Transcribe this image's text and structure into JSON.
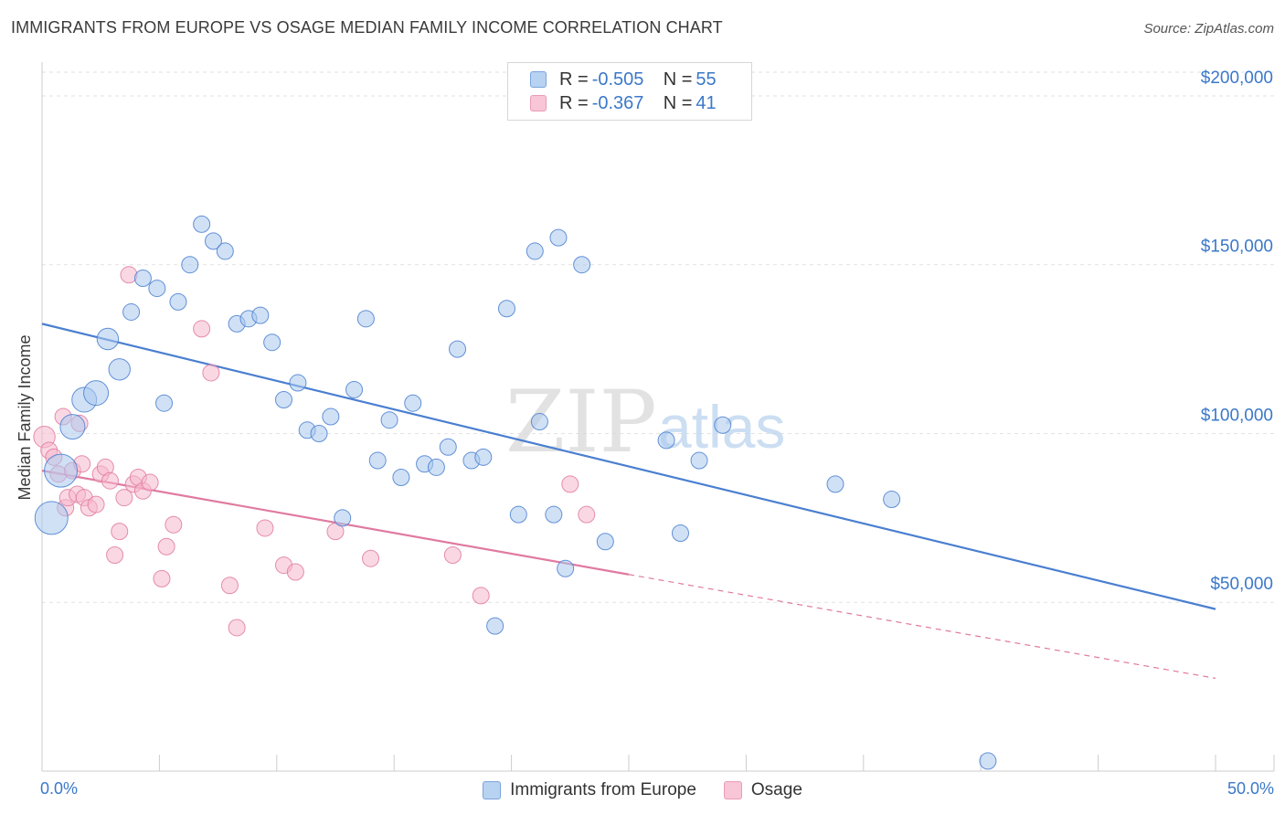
{
  "chart_data": {
    "type": "scatter",
    "title": "IMMIGRANTS FROM EUROPE VS OSAGE MEDIAN FAMILY INCOME CORRELATION CHART",
    "source": "Source: ZipAtlas.com",
    "watermark": {
      "zip": "ZIP",
      "atlas": "atlas"
    },
    "xlabel": "",
    "ylabel": "Median Family Income",
    "xlim": [
      0,
      50
    ],
    "ylim": [
      0,
      210000
    ],
    "x_tick_labels": {
      "min": "0.0%",
      "max": "50.0%"
    },
    "x_ticks_minor": [
      0,
      5,
      10,
      15,
      20,
      25,
      30,
      35,
      40,
      45,
      50
    ],
    "y_ticks": [
      {
        "value": 50000,
        "label": "$50,000"
      },
      {
        "value": 100000,
        "label": "$100,000"
      },
      {
        "value": 150000,
        "label": "$150,000"
      },
      {
        "value": 200000,
        "label": "$200,000"
      }
    ],
    "grid": true,
    "stats_legend": {
      "r_key": "R =",
      "n_key": "N =",
      "rows": [
        {
          "series": "Immigrants from Europe",
          "r": "-0.505",
          "n": "55"
        },
        {
          "series": "Osage",
          "r": "-0.367",
          "n": "41"
        }
      ]
    },
    "series": [
      {
        "name": "Immigrants from Europe",
        "color": "#4a7fd0",
        "fill": "#aac8ef",
        "swatch_fill": "#b8d2f2",
        "swatch_border": "#7aa3dc",
        "trend": {
          "x0": 0,
          "y0": 132500,
          "x1": 50,
          "y1": 48000,
          "solid_to": 50
        },
        "points": [
          [
            0.4,
            75000,
            2.0
          ],
          [
            0.8,
            89000,
            2.0
          ],
          [
            1.3,
            102000,
            1.5
          ],
          [
            1.8,
            110000,
            1.5
          ],
          [
            2.3,
            112000,
            1.5
          ],
          [
            2.8,
            128000,
            1.3
          ],
          [
            3.3,
            119000,
            1.3
          ],
          [
            3.8,
            136000,
            1.0
          ],
          [
            4.3,
            146000,
            1.0
          ],
          [
            4.9,
            143000,
            1.0
          ],
          [
            5.2,
            109000,
            1.0
          ],
          [
            5.8,
            139000,
            1.0
          ],
          [
            6.3,
            150000,
            1.0
          ],
          [
            6.8,
            162000,
            1.0
          ],
          [
            7.3,
            157000,
            1.0
          ],
          [
            7.8,
            154000,
            1.0
          ],
          [
            8.3,
            132500,
            1.0
          ],
          [
            8.8,
            134000,
            1.0
          ],
          [
            9.3,
            135000,
            1.0
          ],
          [
            9.8,
            127000,
            1.0
          ],
          [
            10.3,
            110000,
            1.0
          ],
          [
            10.9,
            115000,
            1.0
          ],
          [
            11.3,
            101000,
            1.0
          ],
          [
            11.8,
            100000,
            1.0
          ],
          [
            12.3,
            105000,
            1.0
          ],
          [
            12.8,
            75000,
            1.0
          ],
          [
            13.3,
            113000,
            1.0
          ],
          [
            13.8,
            134000,
            1.0
          ],
          [
            14.3,
            92000,
            1.0
          ],
          [
            14.8,
            104000,
            1.0
          ],
          [
            15.3,
            87000,
            1.0
          ],
          [
            15.8,
            109000,
            1.0
          ],
          [
            16.3,
            91000,
            1.0
          ],
          [
            16.8,
            90000,
            1.0
          ],
          [
            17.3,
            96000,
            1.0
          ],
          [
            17.7,
            125000,
            1.0
          ],
          [
            18.3,
            92000,
            1.0
          ],
          [
            18.8,
            93000,
            1.0
          ],
          [
            19.3,
            43000,
            1.0
          ],
          [
            19.8,
            137000,
            1.0
          ],
          [
            20.3,
            76000,
            1.0
          ],
          [
            21.0,
            154000,
            1.0
          ],
          [
            21.2,
            103500,
            1.0
          ],
          [
            21.8,
            76000,
            1.0
          ],
          [
            22.0,
            158000,
            1.0
          ],
          [
            22.3,
            60000,
            1.0
          ],
          [
            23.0,
            150000,
            1.0
          ],
          [
            24.0,
            68000,
            1.0
          ],
          [
            26.6,
            98000,
            1.0
          ],
          [
            27.2,
            70500,
            1.0
          ],
          [
            28.0,
            92000,
            1.0
          ],
          [
            29.0,
            102500,
            1.0
          ],
          [
            33.8,
            85000,
            1.0
          ],
          [
            36.2,
            80500,
            1.0
          ],
          [
            40.3,
            3000,
            1.0
          ]
        ]
      },
      {
        "name": "Osage",
        "color": "#e07aa0",
        "fill": "#f5b8cc",
        "swatch_fill": "#f8c6d6",
        "swatch_border": "#eb9bb8",
        "trend": {
          "x0": 0,
          "y0": 89000,
          "x1": 50,
          "y1": 27500,
          "solid_to": 25
        },
        "points": [
          [
            0.1,
            99000,
            1.3
          ],
          [
            0.3,
            95000,
            1.0
          ],
          [
            0.5,
            93000,
            1.0
          ],
          [
            0.7,
            88000,
            1.0
          ],
          [
            0.9,
            105000,
            1.0
          ],
          [
            1.0,
            78000,
            1.0
          ],
          [
            1.1,
            81000,
            1.0
          ],
          [
            1.3,
            89000,
            1.0
          ],
          [
            1.5,
            82000,
            1.0
          ],
          [
            1.6,
            103000,
            1.0
          ],
          [
            1.7,
            91000,
            1.0
          ],
          [
            1.8,
            81000,
            1.0
          ],
          [
            2.0,
            78000,
            1.0
          ],
          [
            2.3,
            79000,
            1.0
          ],
          [
            2.5,
            88000,
            1.0
          ],
          [
            2.7,
            90000,
            1.0
          ],
          [
            2.9,
            86000,
            1.0
          ],
          [
            3.1,
            64000,
            1.0
          ],
          [
            3.3,
            71000,
            1.0
          ],
          [
            3.5,
            81000,
            1.0
          ],
          [
            3.7,
            147000,
            1.0
          ],
          [
            3.9,
            85000,
            1.0
          ],
          [
            4.1,
            87000,
            1.0
          ],
          [
            4.3,
            83000,
            1.0
          ],
          [
            4.6,
            85500,
            1.0
          ],
          [
            5.1,
            57000,
            1.0
          ],
          [
            5.3,
            66500,
            1.0
          ],
          [
            5.6,
            73000,
            1.0
          ],
          [
            6.8,
            131000,
            1.0
          ],
          [
            7.2,
            118000,
            1.0
          ],
          [
            8.0,
            55000,
            1.0
          ],
          [
            8.3,
            42500,
            1.0
          ],
          [
            9.5,
            72000,
            1.0
          ],
          [
            10.3,
            61000,
            1.0
          ],
          [
            10.8,
            59000,
            1.0
          ],
          [
            12.5,
            71000,
            1.0
          ],
          [
            14.0,
            63000,
            1.0
          ],
          [
            17.5,
            64000,
            1.0
          ],
          [
            18.7,
            52000,
            1.0
          ],
          [
            22.5,
            85000,
            1.0
          ],
          [
            23.2,
            76000,
            1.0
          ]
        ]
      }
    ]
  }
}
